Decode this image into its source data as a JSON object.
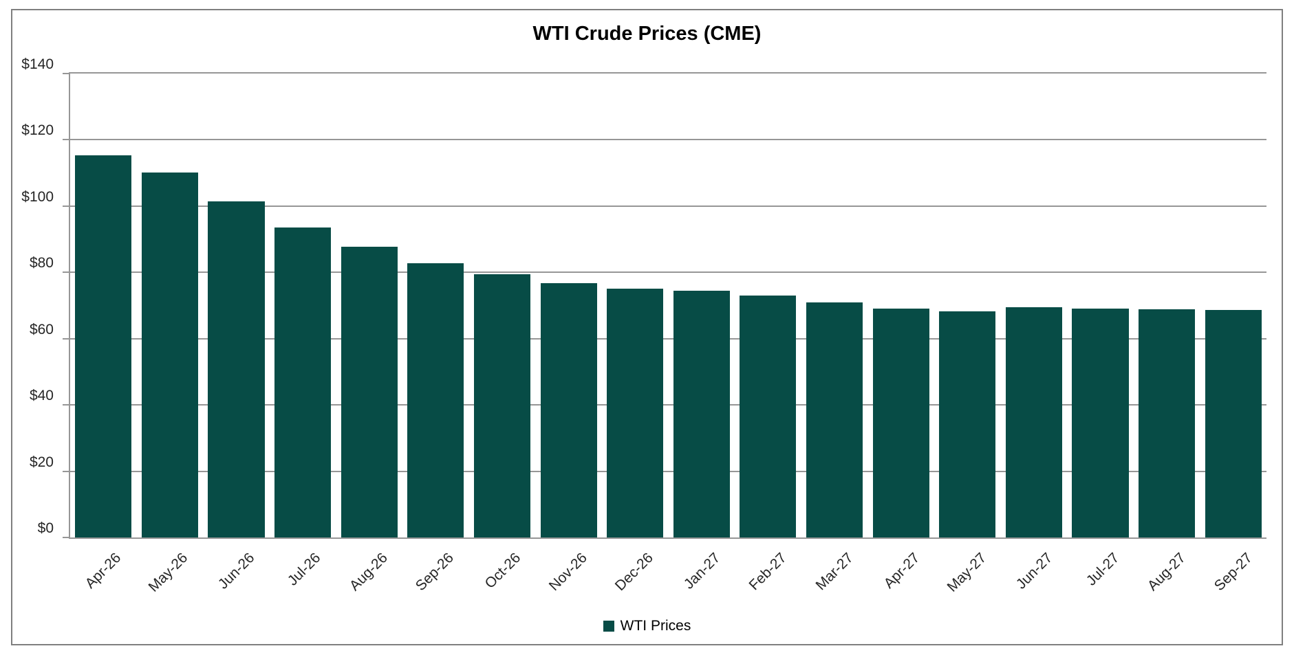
{
  "chart": {
    "title": "WTI Crude Prices (CME)",
    "legend": {
      "label": "WTI Prices"
    }
  },
  "colors": {
    "bar": "#074C46",
    "gridline": "#969696",
    "frame_border": "#7F7F7F",
    "axis_text": "#262626",
    "background": "#FFFFFF"
  },
  "chart_data": {
    "type": "bar",
    "title": "WTI Crude Prices (CME)",
    "categories": [
      "Apr-26",
      "May-26",
      "Jun-26",
      "Jul-26",
      "Aug-26",
      "Sep-26",
      "Oct-26",
      "Nov-26",
      "Dec-26",
      "Jan-27",
      "Feb-27",
      "Mar-27",
      "Apr-27",
      "May-27",
      "Jun-27",
      "Jul-27",
      "Aug-27",
      "Sep-27"
    ],
    "series": [
      {
        "name": "WTI Prices",
        "values": [
          115.3,
          110.1,
          101.5,
          93.6,
          87.7,
          82.8,
          79.5,
          76.8,
          75.0,
          74.4,
          73.0,
          70.9,
          69.1,
          68.2,
          69.4,
          69.1,
          68.8,
          68.6
        ]
      }
    ],
    "xlabel": "",
    "ylabel": "",
    "ylim": [
      0,
      140
    ],
    "y_tick_interval": 20,
    "y_tick_labels": [
      "$0",
      "$20",
      "$40",
      "$60",
      "$80",
      "$100",
      "$120",
      "$140"
    ],
    "grid": true,
    "legend_position": "bottom",
    "x_label_rotation_deg": 45
  }
}
